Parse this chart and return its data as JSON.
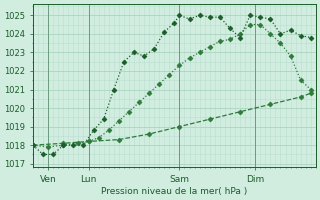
{
  "xlabel": "Pression niveau de la mer( hPa )",
  "ylim": [
    1016.8,
    1025.6
  ],
  "xlim": [
    0,
    56
  ],
  "bg_color": "#d0ede0",
  "grid_color_major": "#aad4c0",
  "grid_color_minor": "#bbddd0",
  "line_color1": "#1a5c28",
  "line_color2": "#2d7a3a",
  "line_color3": "#2d7a3a",
  "xtick_labels": [
    "Ven",
    "Lun",
    "Sam",
    "Dim"
  ],
  "xtick_positions": [
    3,
    11,
    29,
    44
  ],
  "vline_positions": [
    3,
    11,
    29,
    44
  ],
  "ytick_positions": [
    1017,
    1018,
    1019,
    1020,
    1021,
    1022,
    1023,
    1024,
    1025
  ],
  "series1_x": [
    0,
    2,
    4,
    6,
    8,
    10,
    12,
    14,
    16,
    18,
    20,
    22,
    24,
    26,
    28,
    29,
    31,
    33,
    35,
    37,
    39,
    41,
    43,
    45,
    47,
    49,
    51,
    53,
    55
  ],
  "series1_y": [
    1018.0,
    1017.5,
    1017.5,
    1018.0,
    1018.0,
    1018.0,
    1018.8,
    1019.4,
    1021.0,
    1022.5,
    1023.0,
    1022.8,
    1023.2,
    1024.1,
    1024.6,
    1025.0,
    1024.8,
    1025.0,
    1024.9,
    1024.9,
    1024.3,
    1023.8,
    1025.0,
    1024.9,
    1024.8,
    1024.0,
    1024.2,
    1023.9,
    1023.8
  ],
  "series2_x": [
    0,
    3,
    6,
    9,
    11,
    13,
    15,
    17,
    19,
    21,
    23,
    25,
    27,
    29,
    31,
    33,
    35,
    37,
    39,
    41,
    43,
    45,
    47,
    49,
    51,
    53,
    55
  ],
  "series2_y": [
    1018.0,
    1017.9,
    1018.0,
    1018.1,
    1018.2,
    1018.4,
    1018.8,
    1019.3,
    1019.8,
    1020.3,
    1020.8,
    1021.3,
    1021.8,
    1022.3,
    1022.7,
    1023.0,
    1023.3,
    1023.6,
    1023.7,
    1024.0,
    1024.5,
    1024.5,
    1024.0,
    1023.5,
    1022.8,
    1021.5,
    1021.0
  ],
  "series3_x": [
    0,
    6,
    11,
    17,
    23,
    29,
    35,
    41,
    47,
    53,
    55
  ],
  "series3_y": [
    1018.0,
    1018.1,
    1018.2,
    1018.3,
    1018.6,
    1019.0,
    1019.4,
    1019.8,
    1020.2,
    1020.6,
    1020.8
  ]
}
